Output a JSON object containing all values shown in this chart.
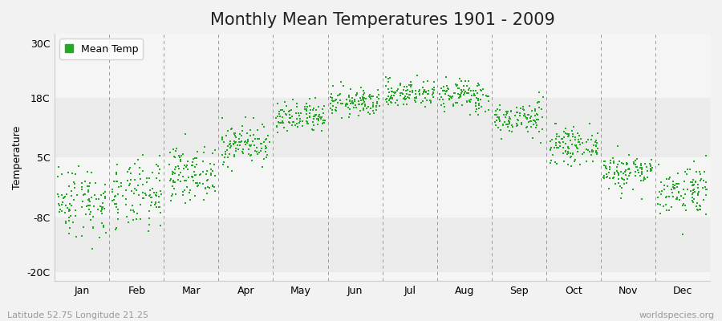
{
  "title": "Monthly Mean Temperatures 1901 - 2009",
  "ylabel": "Temperature",
  "yticks": [
    -20,
    -8,
    5,
    18,
    30
  ],
  "ytick_labels": [
    "-20C",
    "-8C",
    "5C",
    "18C",
    "30C"
  ],
  "ylim": [
    -22,
    32
  ],
  "dot_color": "#22aa22",
  "bg_color": "#f2f2f2",
  "plot_bg_light": "#ebebeb",
  "plot_bg_white": "#f5f5f5",
  "footer_left": "Latitude 52.75 Longitude 21.25",
  "footer_right": "worldspecies.org",
  "legend_label": "Mean Temp",
  "title_fontsize": 15,
  "label_fontsize": 9,
  "footer_fontsize": 8,
  "monthly_means": [
    -4.5,
    -3.5,
    1.5,
    8.0,
    13.5,
    17.0,
    19.0,
    18.5,
    13.5,
    7.5,
    2.0,
    -2.0
  ],
  "monthly_stds": [
    4.0,
    3.8,
    2.8,
    2.2,
    1.8,
    1.5,
    1.5,
    1.8,
    1.8,
    1.8,
    2.0,
    2.8
  ],
  "n_years": 109,
  "month_names": [
    "Jan",
    "Feb",
    "Mar",
    "Apr",
    "May",
    "Jun",
    "Jul",
    "Aug",
    "Sep",
    "Oct",
    "Nov",
    "Dec"
  ],
  "dashed_line_color": "#999999",
  "spine_color": "#cccccc"
}
